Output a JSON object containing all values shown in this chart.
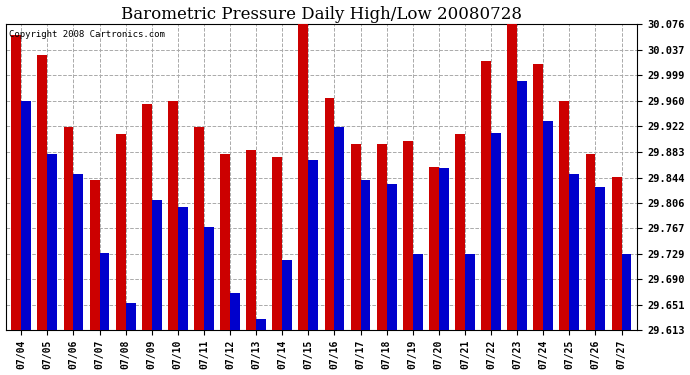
{
  "title": "Barometric Pressure Daily High/Low 20080728",
  "copyright": "Copyright 2008 Cartronics.com",
  "dates": [
    "07/04",
    "07/05",
    "07/06",
    "07/07",
    "07/08",
    "07/09",
    "07/10",
    "07/11",
    "07/12",
    "07/13",
    "07/14",
    "07/15",
    "07/16",
    "07/17",
    "07/18",
    "07/19",
    "07/20",
    "07/21",
    "07/22",
    "07/23",
    "07/24",
    "07/25",
    "07/26",
    "07/27"
  ],
  "highs": [
    30.06,
    30.03,
    29.92,
    29.84,
    29.91,
    29.955,
    29.96,
    29.92,
    29.88,
    29.885,
    29.875,
    30.076,
    29.965,
    29.895,
    29.895,
    29.9,
    29.86,
    29.91,
    30.02,
    30.076,
    30.015,
    29.96,
    29.88,
    29.845
  ],
  "lows": [
    29.96,
    29.88,
    29.85,
    29.73,
    29.655,
    29.81,
    29.8,
    29.77,
    29.67,
    29.63,
    29.72,
    29.87,
    29.92,
    29.84,
    29.835,
    29.729,
    29.858,
    29.729,
    29.912,
    29.99,
    29.93,
    29.85,
    29.83,
    29.729
  ],
  "high_color": "#cc0000",
  "low_color": "#0000cc",
  "bg_color": "#ffffff",
  "grid_color": "#aaaaaa",
  "title_fontsize": 12,
  "ymin": 29.613,
  "ymax": 30.076,
  "yticks": [
    29.613,
    29.651,
    29.69,
    29.729,
    29.767,
    29.806,
    29.844,
    29.883,
    29.922,
    29.96,
    29.999,
    30.037,
    30.076
  ],
  "bar_width": 0.38,
  "figwidth": 6.9,
  "figheight": 3.75,
  "dpi": 100
}
